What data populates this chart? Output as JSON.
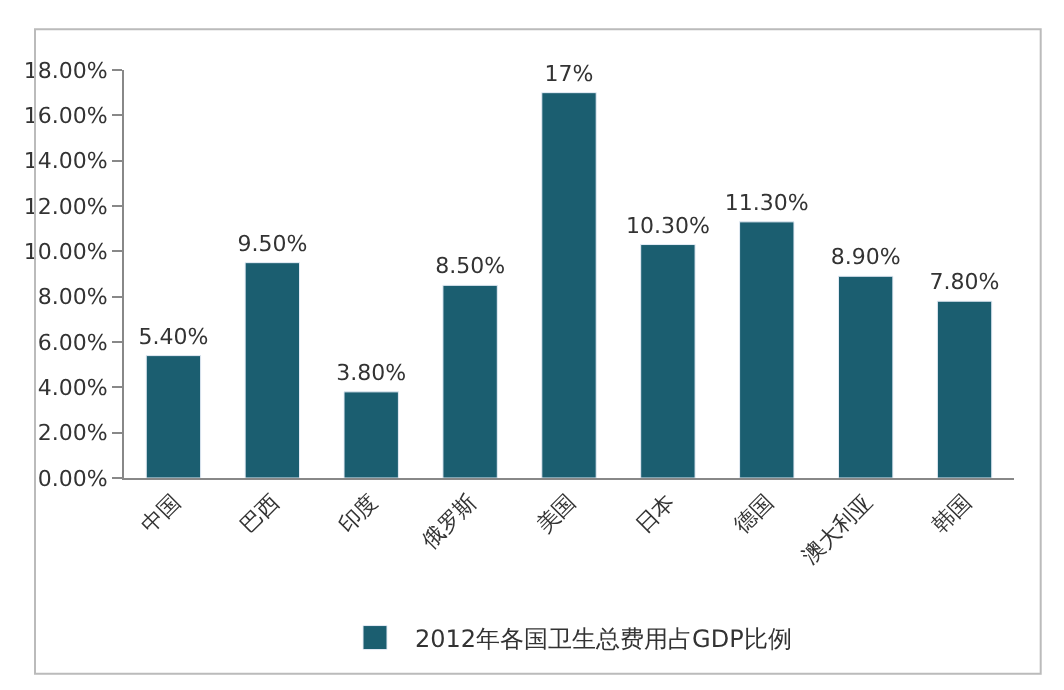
{
  "chart_data": {
    "type": "bar",
    "categories": [
      "中国",
      "巴西",
      "印度",
      "俄罗斯",
      "美国",
      "日本",
      "德国",
      "澳大利亚",
      "韩国"
    ],
    "series": [
      {
        "name": "2012年各国卫生总费用占GDP比例",
        "color": "#1b5e70",
        "values": [
          5.4,
          9.5,
          3.8,
          8.5,
          17,
          10.3,
          11.3,
          8.9,
          7.8
        ],
        "value_labels": [
          "5.40%",
          "9.50%",
          "3.80%",
          "8.50%",
          "17%",
          "10.30%",
          "11.30%",
          "8.90%",
          "7.80%"
        ]
      }
    ],
    "ylim": [
      0,
      18
    ],
    "yticks": [
      {
        "value": 0,
        "label": "0.00%"
      },
      {
        "value": 2,
        "label": "2.00%"
      },
      {
        "value": 4,
        "label": "4.00%"
      },
      {
        "value": 6,
        "label": "6.00%"
      },
      {
        "value": 8,
        "label": "8.00%"
      },
      {
        "value": 10,
        "label": "10.00%"
      },
      {
        "value": 12,
        "label": "12.00%"
      },
      {
        "value": 14,
        "label": "14.00%"
      },
      {
        "value": 16,
        "label": "16.00%"
      },
      {
        "value": 18,
        "label": "18.00%"
      }
    ],
    "legend": "bottom"
  }
}
